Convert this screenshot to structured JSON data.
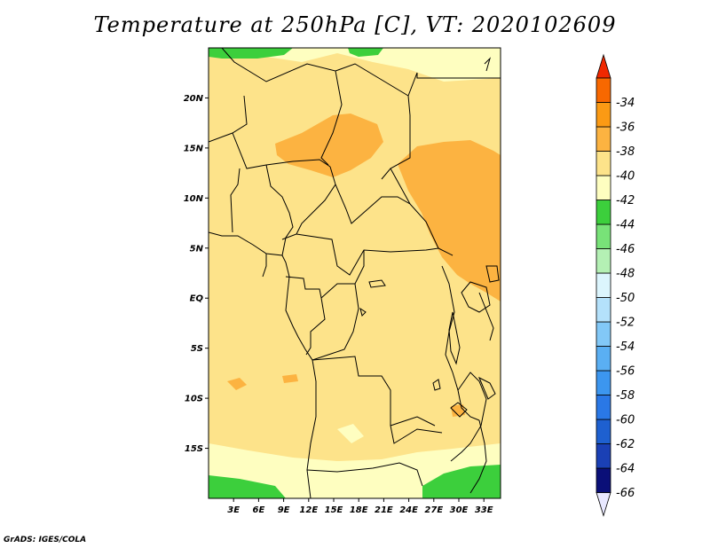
{
  "title": "Temperature at 250hPa [C], VT: 2020102609",
  "credit": "GrADS: IGES/COLA",
  "map": {
    "lon_range": [
      0,
      35
    ],
    "lat_range": [
      -20,
      25
    ],
    "lat_ticks": [
      {
        "value": 20,
        "label": "20N"
      },
      {
        "value": 15,
        "label": "15N"
      },
      {
        "value": 10,
        "label": "10N"
      },
      {
        "value": 5,
        "label": "5N"
      },
      {
        "value": 0,
        "label": "EQ"
      },
      {
        "value": -5,
        "label": "5S"
      },
      {
        "value": -10,
        "label": "10S"
      },
      {
        "value": -15,
        "label": "15S"
      }
    ],
    "lon_ticks": [
      {
        "value": 3,
        "label": "3E"
      },
      {
        "value": 6,
        "label": "6E"
      },
      {
        "value": 9,
        "label": "9E"
      },
      {
        "value": 12,
        "label": "12E"
      },
      {
        "value": 15,
        "label": "15E"
      },
      {
        "value": 18,
        "label": "18E"
      },
      {
        "value": 21,
        "label": "21E"
      },
      {
        "value": 24,
        "label": "24E"
      },
      {
        "value": 27,
        "label": "27E"
      },
      {
        "value": 30,
        "label": "30E"
      },
      {
        "value": 33,
        "label": "33E"
      }
    ]
  },
  "colorbar": {
    "colors": [
      "#e8e8ff",
      "#0a0f78",
      "#1a40b5",
      "#1e60d0",
      "#2a78e6",
      "#3c96ef",
      "#5aaff3",
      "#82c8f7",
      "#b4e1fb",
      "#dcf5fd",
      "#b4f0b4",
      "#78e278",
      "#3ccf3c",
      "#fefec0",
      "#fde38a",
      "#fcb341",
      "#fb9a14",
      "#f86800",
      "#f02800"
    ],
    "labels": [
      "-66",
      "-64",
      "-62",
      "-60",
      "-58",
      "-56",
      "-54",
      "-52",
      "-50",
      "-48",
      "-46",
      "-44",
      "-42",
      "-40",
      "-38",
      "-36",
      "-34"
    ]
  }
}
